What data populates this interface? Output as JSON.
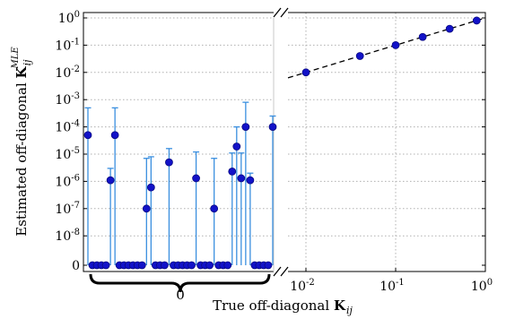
{
  "chart_data": {
    "type": "scatter",
    "ylabel_parts": {
      "main": "Estimated off-diagonal ",
      "bold": "K",
      "sub": "ij",
      "sup": "MLE"
    },
    "xlabel_parts": {
      "main": "True off-diagonal ",
      "bold": "K",
      "sub": "ij"
    },
    "y_axis": {
      "scale": "log-with-zero",
      "ticks": [
        {
          "base": "10",
          "exp": "0"
        },
        {
          "base": "10",
          "exp": "-1"
        },
        {
          "base": "10",
          "exp": "-2"
        },
        {
          "base": "10",
          "exp": "-3"
        },
        {
          "base": "10",
          "exp": "-4"
        },
        {
          "base": "10",
          "exp": "-5"
        },
        {
          "base": "10",
          "exp": "-6"
        },
        {
          "base": "10",
          "exp": "-7"
        },
        {
          "base": "10",
          "exp": "-8"
        },
        {
          "base": "",
          "exp": "",
          "text": "0"
        }
      ]
    },
    "left_panel": {
      "x_label": "0",
      "note": "entries whose true value is 0",
      "points": [
        {
          "y": 5e-05,
          "err": 0.0005
        },
        {
          "y": 0
        },
        {
          "y": 0
        },
        {
          "y": 0
        },
        {
          "y": 0
        },
        {
          "y": 1.1e-06,
          "err": 3e-06
        },
        {
          "y": 5e-05,
          "err": 0.0005
        },
        {
          "y": 0
        },
        {
          "y": 0
        },
        {
          "y": 0
        },
        {
          "y": 0
        },
        {
          "y": 0
        },
        {
          "y": 0
        },
        {
          "y": 1e-07,
          "err": 7e-06
        },
        {
          "y": 6e-07,
          "err": 8e-06
        },
        {
          "y": 0
        },
        {
          "y": 0
        },
        {
          "y": 0
        },
        {
          "y": 5e-06,
          "err": 1.6e-05
        },
        {
          "y": 0
        },
        {
          "y": 0
        },
        {
          "y": 0
        },
        {
          "y": 0
        },
        {
          "y": 0
        },
        {
          "y": 1.3e-06,
          "err": 1.2e-05
        },
        {
          "y": 0
        },
        {
          "y": 0
        },
        {
          "y": 0
        },
        {
          "y": 1e-07,
          "err": 7e-06
        },
        {
          "y": 0
        },
        {
          "y": 0
        },
        {
          "y": 0
        },
        {
          "y": 2.3e-06,
          "err": 1.1e-05
        },
        {
          "y": 1.9e-05,
          "err": 0.0001
        },
        {
          "y": 1.3e-06,
          "err": 1.1e-05
        },
        {
          "y": 0.0001,
          "err": 0.0008
        },
        {
          "y": 1.1e-06,
          "err": 2e-06
        },
        {
          "y": 0
        },
        {
          "y": 0
        },
        {
          "y": 0
        },
        {
          "y": 0
        },
        {
          "y": 0.0001,
          "err": 0.00025
        }
      ]
    },
    "right_panel": {
      "x_scale": "log",
      "xlim_exp": [
        -2.2,
        0
      ],
      "x_ticks": [
        {
          "base": "10",
          "exp": "-2"
        },
        {
          "base": "10",
          "exp": "-1"
        },
        {
          "base": "10",
          "exp": "0"
        }
      ],
      "x": [
        0.01,
        0.04,
        0.1,
        0.2,
        0.4,
        0.8
      ],
      "y": [
        0.01,
        0.04,
        0.1,
        0.2,
        0.4,
        0.8
      ],
      "reference_line": "y = x",
      "grid": true
    },
    "colors": {
      "marker": "#1212c8",
      "marker_edge": "#0a0a80",
      "errorbar": "#3a8fdf",
      "grid": "#b0b0b0"
    }
  }
}
